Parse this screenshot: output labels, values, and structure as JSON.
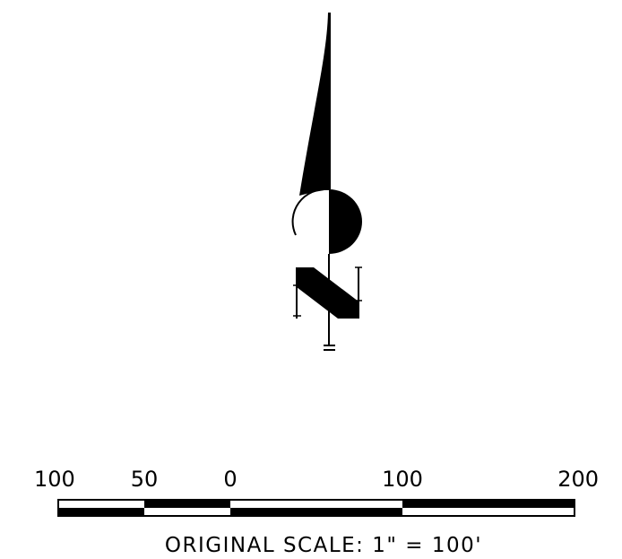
{
  "north_arrow": {
    "letter": "N"
  },
  "scale_bar": {
    "ticks": [
      {
        "label": "100",
        "value": -100
      },
      {
        "label": "50",
        "value": -50
      },
      {
        "label": "0",
        "value": 0
      },
      {
        "label": "100",
        "value": 100
      },
      {
        "label": "200",
        "value": 200
      }
    ],
    "segments": [
      {
        "from": -100,
        "to": -50
      },
      {
        "from": -50,
        "to": 0
      },
      {
        "from": 0,
        "to": 100
      },
      {
        "from": 100,
        "to": 200
      }
    ],
    "units": "feet",
    "caption": "ORIGINAL SCALE:  1\"  =  100'"
  },
  "colors": {
    "ink": "#000000",
    "paper": "#ffffff"
  }
}
